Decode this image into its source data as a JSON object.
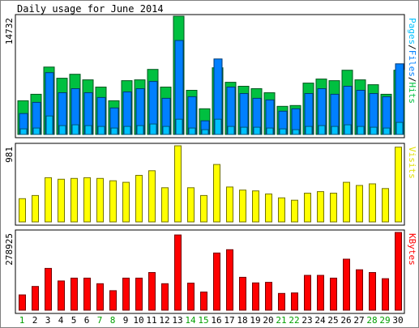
{
  "chart_data": {
    "type": "bar",
    "title": "Daily usage for June 2014",
    "x": [
      "1",
      "2",
      "3",
      "4",
      "5",
      "6",
      "7",
      "8",
      "9",
      "10",
      "11",
      "12",
      "13",
      "14",
      "15",
      "16",
      "17",
      "18",
      "19",
      "20",
      "21",
      "22",
      "23",
      "24",
      "25",
      "26",
      "27",
      "28",
      "29",
      "30"
    ],
    "weekend_days": [
      "1",
      "7",
      "8",
      "14",
      "15",
      "21",
      "22",
      "28",
      "29"
    ],
    "panels": [
      {
        "id": "hits",
        "max_label": "14732",
        "ymax": 14732,
        "series": [
          {
            "name": "Hits",
            "color": "#00c040",
            "values": [
              4200,
              5000,
              8400,
              7000,
              7500,
              6800,
              5900,
              4200,
              6700,
              6800,
              8100,
              5900,
              14732,
              5500,
              3200,
              8300,
              6500,
              6000,
              5700,
              5200,
              3500,
              3600,
              6400,
              6900,
              6700,
              8000,
              6800,
              6200,
              5000,
              8000
            ]
          },
          {
            "name": "Files",
            "color": "#0080ff",
            "values": [
              2600,
              4000,
              7700,
              5200,
              5700,
              5200,
              4600,
              3300,
              5300,
              5700,
              6600,
              4500,
              11700,
              4700,
              1700,
              9400,
              5900,
              5100,
              4500,
              4300,
              2900,
              3200,
              5100,
              5700,
              5000,
              6000,
              5500,
              5100,
              4700,
              8800
            ]
          },
          {
            "name": "Pages",
            "color": "#00c0ff",
            "values": [
              700,
              800,
              2300,
              1100,
              1200,
              1100,
              1000,
              800,
              1000,
              1100,
              1300,
              1000,
              1900,
              800,
              600,
              1900,
              1000,
              900,
              900,
              800,
              700,
              600,
              1000,
              1100,
              1000,
              1200,
              1000,
              900,
              800,
              1500
            ]
          }
        ],
        "legend": [
          {
            "text": "Pages",
            "color": "#00c0ff"
          },
          {
            "text": "Files",
            "color": "#0080ff"
          },
          {
            "text": "Hits",
            "color": "#00c040"
          }
        ]
      },
      {
        "id": "visits",
        "max_label": "981",
        "ymax": 981,
        "series": [
          {
            "name": "Visits",
            "color": "#ffff00",
            "values": [
              300,
              340,
              570,
              550,
              560,
              570,
              560,
              530,
              510,
              600,
              660,
              440,
              981,
              440,
              340,
              740,
              450,
              410,
              400,
              360,
              310,
              280,
              370,
              390,
              370,
              510,
              470,
              490,
              430,
              963
            ]
          }
        ],
        "legend": [
          {
            "text": "Visits",
            "color": "#ffff00"
          }
        ]
      },
      {
        "id": "kbytes",
        "max_label": "278925",
        "ymax": 278925,
        "series": [
          {
            "name": "KBytes",
            "color": "#ff0000",
            "values": [
              55000,
              85000,
              150000,
              105000,
              115000,
              115000,
              95000,
              70000,
              115000,
              115000,
              135000,
              95000,
              270000,
              97000,
              65000,
              205000,
              217000,
              118000,
              98000,
              100000,
              60000,
              62000,
              125000,
              125000,
              115000,
              183000,
              145000,
              135000,
              113000,
              278925
            ]
          }
        ],
        "legend": [
          {
            "text": "KBytes",
            "color": "#ff0000"
          }
        ]
      }
    ]
  }
}
